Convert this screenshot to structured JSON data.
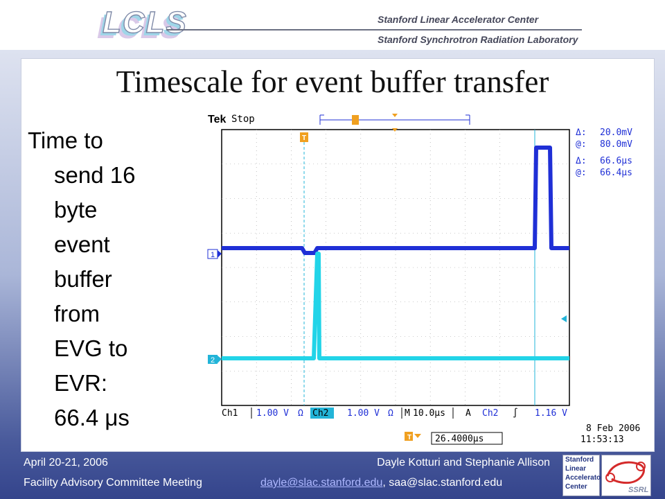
{
  "header": {
    "logo_text": "LCLS",
    "org_line1": "Stanford Linear Accelerator Center",
    "org_line2": "Stanford Synchrotron Radiation Laboratory"
  },
  "slide": {
    "title": "Timescale for event buffer transfer",
    "body_lines": [
      "Time to",
      "send 16",
      "byte",
      "event",
      "buffer",
      "from",
      "EVG to",
      "EVR:",
      "66.4 μs"
    ]
  },
  "scope": {
    "brand": "Tek",
    "status": "Stop",
    "trigger_marker": "T",
    "ch1_marker": "1",
    "ch2_marker": "2",
    "cursor_delta_v": "20.0mV",
    "cursor_at_v": "80.0mV",
    "cursor_delta_t": "66.6μs",
    "cursor_at_t": "66.4μs",
    "delta_symbol": "Δ:",
    "at_symbol": "@:",
    "ch1_label": "Ch1",
    "ch1_scale": "1.00 V",
    "ch2_label": "Ch2",
    "ch2_scale": "1.00 V",
    "coupling_symbol": "Ω",
    "timebase_label": "M",
    "timebase": "10.0μs",
    "trig_mode": "A",
    "trig_source": "Ch2",
    "trig_slope": "∫",
    "trig_level": "1.16 V",
    "date": "8 Feb 2006",
    "time": "11:53:13",
    "trigger_position": "26.4000μs",
    "trace_colors": {
      "ch1": "#1f2fd6",
      "ch2": "#22d4e8"
    }
  },
  "footer": {
    "date": "April 20-21, 2006",
    "meeting": "Facility Advisory Committee Meeting",
    "authors": "Dayle Kotturi and Stephanie Allison",
    "email1": "dayle@slac.stanford.edu",
    "email_sep": ", ",
    "email2": "saa@slac.stanford.edu",
    "slac_logo": [
      "Stanford",
      "Linear",
      "Accelerator",
      "Center"
    ],
    "ssrl_logo": "SSRL"
  }
}
